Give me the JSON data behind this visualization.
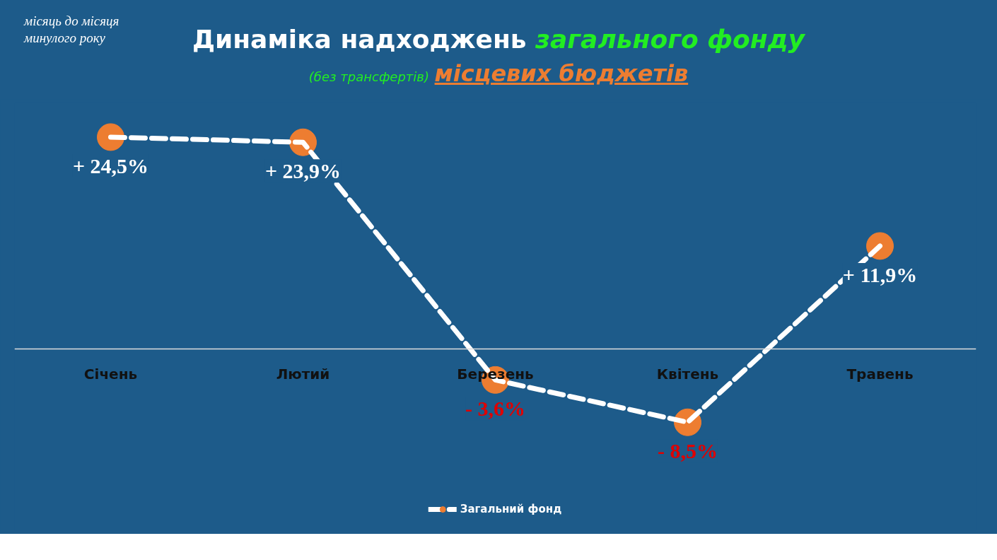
{
  "chart_data": {
    "type": "line",
    "title": "Динаміка надходжень загального фонду",
    "subtitle": "(без трансфертів) місцевих бюджетів",
    "annotations": [
      "місяць до місяця минулого року"
    ],
    "categories": [
      "Січень",
      "Лютий",
      "Березень",
      "Квітень",
      "Травень"
    ],
    "series": [
      {
        "name": "Загальний фонд",
        "color": "#ed7d31",
        "values": [
          24.5,
          23.9,
          -3.6,
          -8.5,
          11.9
        ],
        "value_labels": [
          "+ 24,5%",
          "+ 23,9%",
          "- 3,6%",
          "- 8,5%",
          "+ 11,9%"
        ]
      }
    ],
    "marker": "circle",
    "line_style": "dashed",
    "legend": "bottom",
    "grid": false
  }
}
